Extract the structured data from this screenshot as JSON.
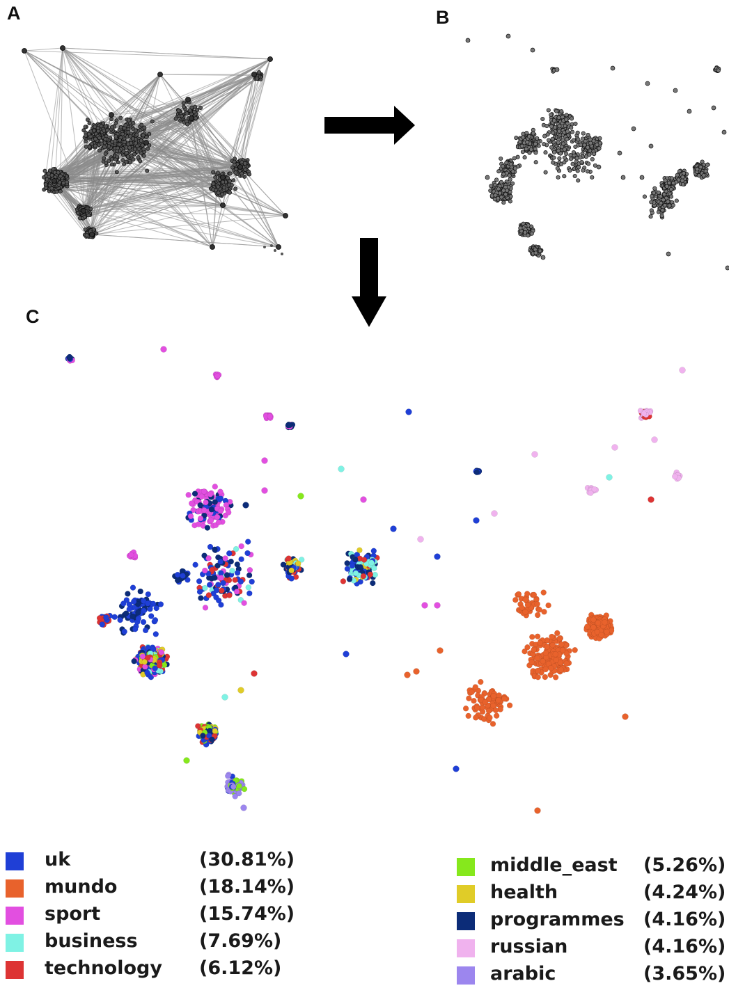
{
  "panels": {
    "a": "A",
    "b": "B",
    "c": "C"
  },
  "legend": {
    "left": [
      {
        "name": "uk",
        "pct": "(30.81%)",
        "color": "#1f3fd6"
      },
      {
        "name": "mundo",
        "pct": "(18.14%)",
        "color": "#e8622c"
      },
      {
        "name": "sport",
        "pct": "(15.74%)",
        "color": "#e24fe0"
      },
      {
        "name": "business",
        "pct": "(7.69%)",
        "color": "#7ff2e4"
      },
      {
        "name": "technology",
        "pct": "(6.12%)",
        "color": "#dd3434"
      }
    ],
    "right": [
      {
        "name": "middle_east",
        "pct": "(5.26%)",
        "color": "#86e81c"
      },
      {
        "name": "health",
        "pct": "(4.24%)",
        "color": "#e0cc28"
      },
      {
        "name": "programmes",
        "pct": "(4.16%)",
        "color": "#0c2c78"
      },
      {
        "name": "russian",
        "pct": "(4.16%)",
        "color": "#f0b2ee"
      },
      {
        "name": "arabic",
        "pct": "(3.65%)",
        "color": "#9c86ee"
      }
    ]
  },
  "arrows": [
    "right-arrow",
    "down-arrow"
  ]
}
